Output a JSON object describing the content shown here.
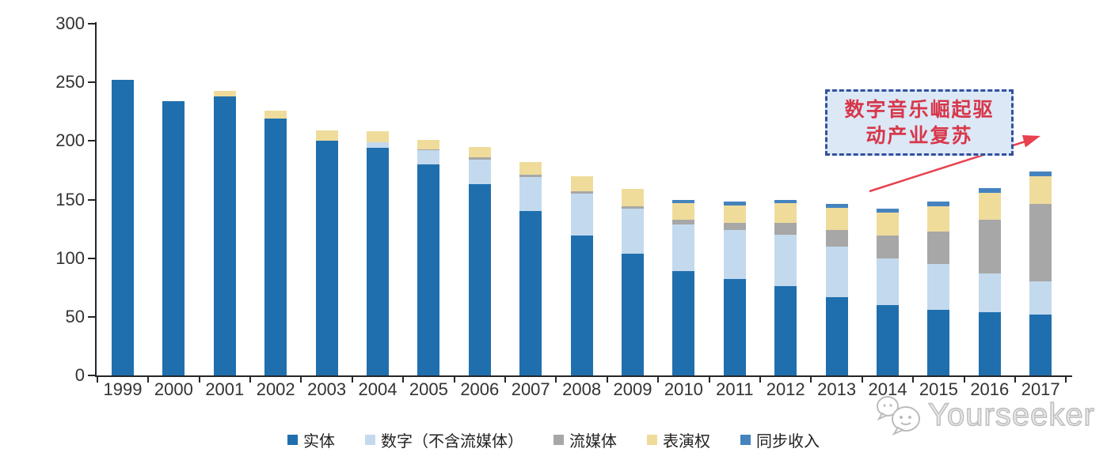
{
  "chart_data": {
    "type": "bar",
    "stacked": true,
    "title": "",
    "xlabel": "",
    "ylabel": "",
    "grid": false,
    "legend_position": "bottom",
    "ylim": [
      0,
      300
    ],
    "yticks": [
      0,
      50,
      100,
      150,
      200,
      250,
      300
    ],
    "categories": [
      "1999",
      "2000",
      "2001",
      "2002",
      "2003",
      "2004",
      "2005",
      "2006",
      "2007",
      "2008",
      "2009",
      "2010",
      "2011",
      "2012",
      "2013",
      "2014",
      "2015",
      "2016",
      "2017"
    ],
    "series": [
      {
        "name": "实体",
        "color": "#1F6FAE",
        "values": [
          252,
          234,
          238,
          219,
          200,
          194,
          180,
          163,
          140,
          119,
          104,
          89,
          82,
          76,
          67,
          60,
          56,
          54,
          52
        ]
      },
      {
        "name": "数字（不含流媒体）",
        "color": "#C3D9ED",
        "values": [
          0,
          0,
          0,
          0,
          0,
          5,
          12,
          21,
          29,
          36,
          38,
          40,
          42,
          44,
          43,
          40,
          39,
          33,
          28
        ]
      },
      {
        "name": "流媒体",
        "color": "#A7A7A7",
        "values": [
          0,
          0,
          0,
          0,
          0,
          0,
          1,
          2,
          2,
          2,
          2,
          4,
          6,
          10,
          14,
          19,
          28,
          46,
          66
        ]
      },
      {
        "name": "表演权",
        "color": "#EFDC9B",
        "values": [
          0,
          0,
          5,
          7,
          9,
          9,
          8,
          9,
          11,
          13,
          15,
          14,
          15,
          17,
          19,
          20,
          21,
          23,
          24
        ]
      },
      {
        "name": "同步收入",
        "color": "#4583BE",
        "values": [
          0,
          0,
          0,
          0,
          0,
          0,
          0,
          0,
          0,
          0,
          0,
          3,
          3,
          3,
          3,
          3,
          4,
          4,
          4
        ]
      }
    ],
    "annotation": {
      "lines": [
        "数字音乐崛起驱",
        "动产业复苏"
      ],
      "text_color": "#D7374A",
      "box_fill": "#DCE8F6",
      "box_border_color": "#34519F",
      "arrow_color": "#E8414F"
    },
    "axis_color": "#262626"
  },
  "watermark": {
    "text": "Yourseeker",
    "icon": "speech-bubble-smiley-icon",
    "color": "#BDBDBD"
  }
}
